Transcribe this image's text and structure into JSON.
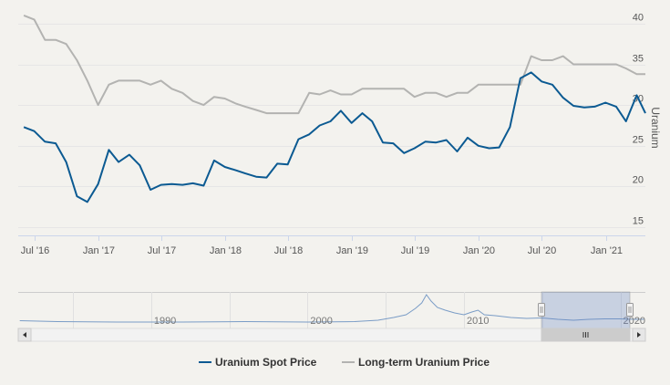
{
  "chart_data": {
    "type": "line",
    "ylabel": "Uranium",
    "x_ticks": [
      "Jul '16",
      "Jan '17",
      "Jul '17",
      "Jan '18",
      "Jul '18",
      "Jan '19",
      "Jul '19",
      "Jan '20",
      "Jul '20",
      "Jan '21"
    ],
    "y_ticks": [
      15,
      20,
      25,
      30,
      35,
      40
    ],
    "ylim": [
      14,
      42
    ],
    "grid": true,
    "legend_position": "bottom",
    "series": [
      {
        "name": "Uranium Spot Price",
        "color": "#0b5a92",
        "x": [
          "2016-05-31",
          "2016-06-30",
          "2016-07-31",
          "2016-08-31",
          "2016-09-30",
          "2016-10-31",
          "2016-11-30",
          "2016-12-31",
          "2017-01-31",
          "2017-02-28",
          "2017-03-31",
          "2017-04-30",
          "2017-05-31",
          "2017-06-30",
          "2017-07-31",
          "2017-08-31",
          "2017-09-30",
          "2017-10-31",
          "2017-11-30",
          "2017-12-31",
          "2018-01-31",
          "2018-02-28",
          "2018-03-31",
          "2018-04-30",
          "2018-05-31",
          "2018-06-30",
          "2018-07-31",
          "2018-08-31",
          "2018-09-30",
          "2018-10-31",
          "2018-11-30",
          "2018-12-31",
          "2019-01-31",
          "2019-02-28",
          "2019-03-31",
          "2019-04-30",
          "2019-05-31",
          "2019-06-30",
          "2019-07-31",
          "2019-08-31",
          "2019-09-30",
          "2019-10-31",
          "2019-11-30",
          "2019-12-31",
          "2020-01-31",
          "2020-02-29",
          "2020-03-31",
          "2020-04-30",
          "2020-05-31",
          "2020-06-30",
          "2020-07-31",
          "2020-08-31",
          "2020-09-30",
          "2020-10-31",
          "2020-11-30",
          "2020-12-31",
          "2021-01-31",
          "2021-02-28",
          "2021-03-31",
          "2021-04-30"
        ],
        "values": [
          27.3,
          26.8,
          25.5,
          25.3,
          23.0,
          18.8,
          18.1,
          20.3,
          24.5,
          23.0,
          23.9,
          22.6,
          19.6,
          20.2,
          20.3,
          20.2,
          20.4,
          20.1,
          23.2,
          22.4,
          22.0,
          21.6,
          21.2,
          21.1,
          22.8,
          22.7,
          25.8,
          26.4,
          27.5,
          28.0,
          29.3,
          27.8,
          29.0,
          28.0,
          25.4,
          25.3,
          24.1,
          24.7,
          25.5,
          25.4,
          25.7,
          24.3,
          26.0,
          25.0,
          24.7,
          24.8,
          27.3,
          33.3,
          34.0,
          32.9,
          32.5,
          30.9,
          29.9,
          29.7,
          29.8,
          30.3,
          29.8,
          28.0,
          31.2,
          29.0
        ]
      },
      {
        "name": "Long-term Uranium Price",
        "color": "#b3b3b1",
        "x": [
          "2016-05-31",
          "2016-06-30",
          "2016-07-31",
          "2016-08-31",
          "2016-09-30",
          "2016-10-31",
          "2016-11-30",
          "2016-12-31",
          "2017-01-31",
          "2017-02-28",
          "2017-03-31",
          "2017-04-30",
          "2017-05-31",
          "2017-06-30",
          "2017-07-31",
          "2017-08-31",
          "2017-09-30",
          "2017-10-31",
          "2017-11-30",
          "2017-12-31",
          "2018-01-31",
          "2018-02-28",
          "2018-03-31",
          "2018-04-30",
          "2018-05-31",
          "2018-06-30",
          "2018-07-31",
          "2018-08-31",
          "2018-09-30",
          "2018-10-31",
          "2018-11-30",
          "2018-12-31",
          "2019-01-31",
          "2019-02-28",
          "2019-03-31",
          "2019-04-30",
          "2019-05-31",
          "2019-06-30",
          "2019-07-31",
          "2019-08-31",
          "2019-09-30",
          "2019-10-31",
          "2019-11-30",
          "2019-12-31",
          "2020-01-31",
          "2020-02-29",
          "2020-03-31",
          "2020-04-30",
          "2020-05-31",
          "2020-06-30",
          "2020-07-31",
          "2020-08-31",
          "2020-09-30",
          "2020-10-31",
          "2020-11-30",
          "2020-12-31",
          "2021-01-31",
          "2021-02-28",
          "2021-03-31",
          "2021-04-30"
        ],
        "values": [
          41.0,
          40.5,
          38.0,
          38.0,
          37.5,
          35.5,
          33.0,
          30.0,
          32.5,
          33.0,
          33.0,
          33.0,
          32.5,
          33.0,
          32.0,
          31.5,
          30.5,
          30.0,
          31.0,
          30.8,
          30.2,
          29.8,
          29.4,
          29.0,
          29.0,
          29.0,
          29.0,
          31.5,
          31.3,
          31.8,
          31.3,
          31.3,
          32.0,
          32.0,
          32.0,
          32.0,
          32.0,
          31.0,
          31.5,
          31.5,
          31.0,
          31.5,
          31.5,
          32.5,
          32.5,
          32.5,
          32.5,
          32.5,
          36.0,
          35.5,
          35.5,
          36.0,
          35.0,
          35.0,
          35.0,
          35.0,
          35.0,
          34.5,
          33.8,
          33.8
        ]
      }
    ]
  },
  "navigator": {
    "year_labels": [
      "1990",
      "2000",
      "2010",
      "2020"
    ]
  },
  "legend": {
    "items": [
      {
        "label": "Uranium Spot Price",
        "color": "#0b5a92"
      },
      {
        "label": "Long-term Uranium Price",
        "color": "#b3b3b1"
      }
    ]
  }
}
